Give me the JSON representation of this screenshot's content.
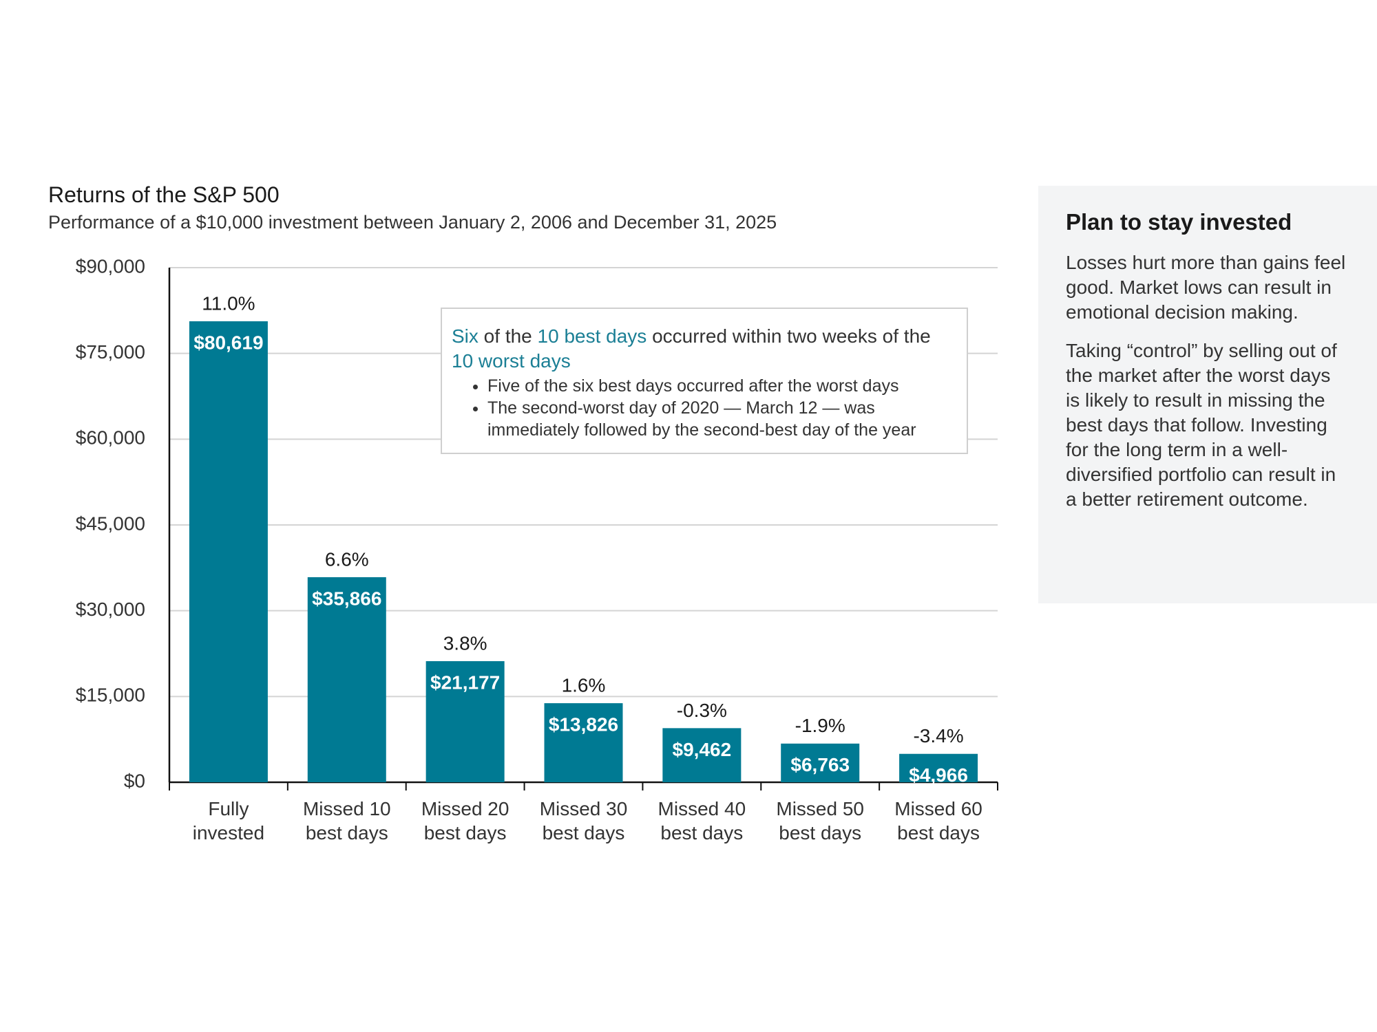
{
  "chart_data": {
    "type": "bar",
    "title": "Returns of the S&P 500",
    "subtitle": "Performance of a $10,000 investment between January 2, 2006 and December 31, 2025",
    "categories": [
      "Fully invested",
      "Missed 10 best days",
      "Missed 20 best days",
      "Missed 30 best days",
      "Missed 40 best days",
      "Missed 50 best days",
      "Missed 60 best days"
    ],
    "values": [
      80619,
      35866,
      21177,
      13826,
      9462,
      6763,
      4966
    ],
    "value_labels": [
      "$80,619",
      "$35,866",
      "$21,177",
      "$13,826",
      "$9,462",
      "$6,763",
      "$4,966"
    ],
    "return_labels": [
      "11.0%",
      "6.6%",
      "3.8%",
      "1.6%",
      "-0.3%",
      "-1.9%",
      "-3.4%"
    ],
    "color": "#007a93",
    "ylim": [
      0,
      90000
    ],
    "yticks": [
      {
        "value": 0,
        "label": "$0"
      },
      {
        "value": 15000,
        "label": "$15,000"
      },
      {
        "value": 30000,
        "label": "$30,000"
      },
      {
        "value": 45000,
        "label": "$45,000"
      },
      {
        "value": 60000,
        "label": "$60,000"
      },
      {
        "value": 75000,
        "label": "$75,000"
      },
      {
        "value": 90000,
        "label": "$90,000"
      }
    ],
    "grid": true,
    "annotation": {
      "heading": [
        {
          "text": "Six",
          "highlight": true
        },
        {
          "text": " of the ",
          "highlight": false
        },
        {
          "text": "10 best days",
          "highlight": true
        },
        {
          "text": " occurred within two weeks of the ",
          "highlight": false
        },
        {
          "text": "10 worst days",
          "highlight": true
        }
      ],
      "bullets": [
        "Five of the six best days occurred after the worst days",
        "The second-worst day of 2020 — March 12 — was immediately followed by the second-best day of the year"
      ]
    }
  },
  "side_panel": {
    "title": "Plan to stay invested",
    "paragraphs": [
      "Losses hurt more than gains feel good. Market lows can result in emotional decision making.",
      "Taking “control” by selling out of the market after the worst days is likely to result in missing the best days that follow. Investing for the long term in a well-diversified portfolio can result in a better retirement outcome."
    ]
  }
}
